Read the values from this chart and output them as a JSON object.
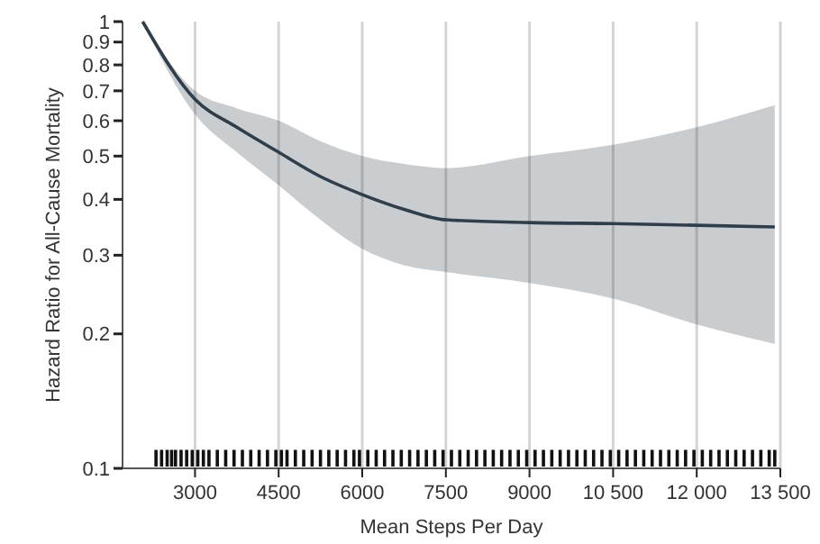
{
  "chart_data": {
    "type": "line",
    "xlabel": "Mean Steps Per Day",
    "ylabel": "Hazard Ratio for All-Cause Mortality",
    "log": "y",
    "grid": "x",
    "xlim": [
      1700,
      13500
    ],
    "ylim": [
      0.1,
      1
    ],
    "xticks": [
      3000,
      4500,
      6000,
      7500,
      9000,
      {
        "value": 10500,
        "label": "10 500"
      },
      {
        "value": 12000,
        "label": "12 000"
      },
      {
        "value": 13500,
        "label": "13 500"
      }
    ],
    "yticks": [
      0.1,
      0.2,
      0.3,
      0.4,
      0.5,
      0.6,
      0.7,
      0.8,
      0.9,
      1
    ],
    "series": [
      {
        "color": "#2f3e4a",
        "x": [
          2060,
          3000,
          3750,
          4500,
          5250,
          6000,
          6750,
          7500,
          9000,
          10500,
          12000,
          13400
        ],
        "values": [
          1,
          0.67,
          0.58,
          0.51,
          0.45,
          0.41,
          0.38,
          0.36,
          0.355,
          0.353,
          0.35,
          0.347
        ],
        "lower": [
          1,
          0.62,
          0.51,
          0.43,
          0.36,
          0.31,
          0.285,
          0.275,
          0.26,
          0.24,
          0.21,
          0.19
        ],
        "upper": [
          1,
          0.7,
          0.64,
          0.6,
          0.54,
          0.5,
          0.48,
          0.47,
          0.5,
          0.53,
          0.58,
          0.65
        ]
      },
      {
        "type": "bar",
        "color": "#111111",
        "x": [
          2300,
          2400,
          2500,
          2580,
          2650,
          2750,
          2850,
          2950,
          3050,
          3150,
          3250,
          3400,
          3550,
          3700,
          3850,
          4000,
          4150,
          4300,
          4450,
          4550,
          4650,
          4800,
          4950,
          5100,
          5250,
          5400,
          5550,
          5700,
          5850,
          5950,
          6100,
          6250,
          6400,
          6550,
          6700,
          6850,
          7000,
          7150,
          7300,
          7450,
          7600,
          7750,
          7900,
          8050,
          8200,
          8350,
          8500,
          8650,
          8800,
          8950,
          9100,
          9250,
          9400,
          9550,
          9700,
          9850,
          10000,
          10150,
          10300,
          10450,
          10600,
          10750,
          10900,
          11050,
          11200,
          11350,
          11500,
          11650,
          11800,
          11950,
          12100,
          12250,
          12400,
          12550,
          12700,
          12850,
          13000,
          13150,
          13300,
          13400
        ],
        "values": [
          0.11,
          0.11,
          0.11,
          0.11,
          0.11,
          0.11,
          0.11,
          0.11,
          0.11,
          0.11,
          0.11,
          0.11,
          0.11,
          0.11,
          0.11,
          0.11,
          0.11,
          0.11,
          0.11,
          0.11,
          0.11,
          0.11,
          0.11,
          0.11,
          0.11,
          0.11,
          0.11,
          0.11,
          0.11,
          0.11,
          0.11,
          0.11,
          0.11,
          0.11,
          0.11,
          0.11,
          0.11,
          0.11,
          0.11,
          0.11,
          0.11,
          0.11,
          0.11,
          0.11,
          0.11,
          0.11,
          0.11,
          0.11,
          0.11,
          0.11,
          0.11,
          0.11,
          0.11,
          0.11,
          0.11,
          0.11,
          0.11,
          0.11,
          0.11,
          0.11,
          0.11,
          0.11,
          0.11,
          0.11,
          0.11,
          0.11,
          0.11,
          0.11,
          0.11,
          0.11,
          0.11,
          0.11,
          0.11,
          0.11,
          0.11,
          0.11,
          0.11,
          0.11,
          0.11,
          0.11
        ]
      }
    ]
  }
}
